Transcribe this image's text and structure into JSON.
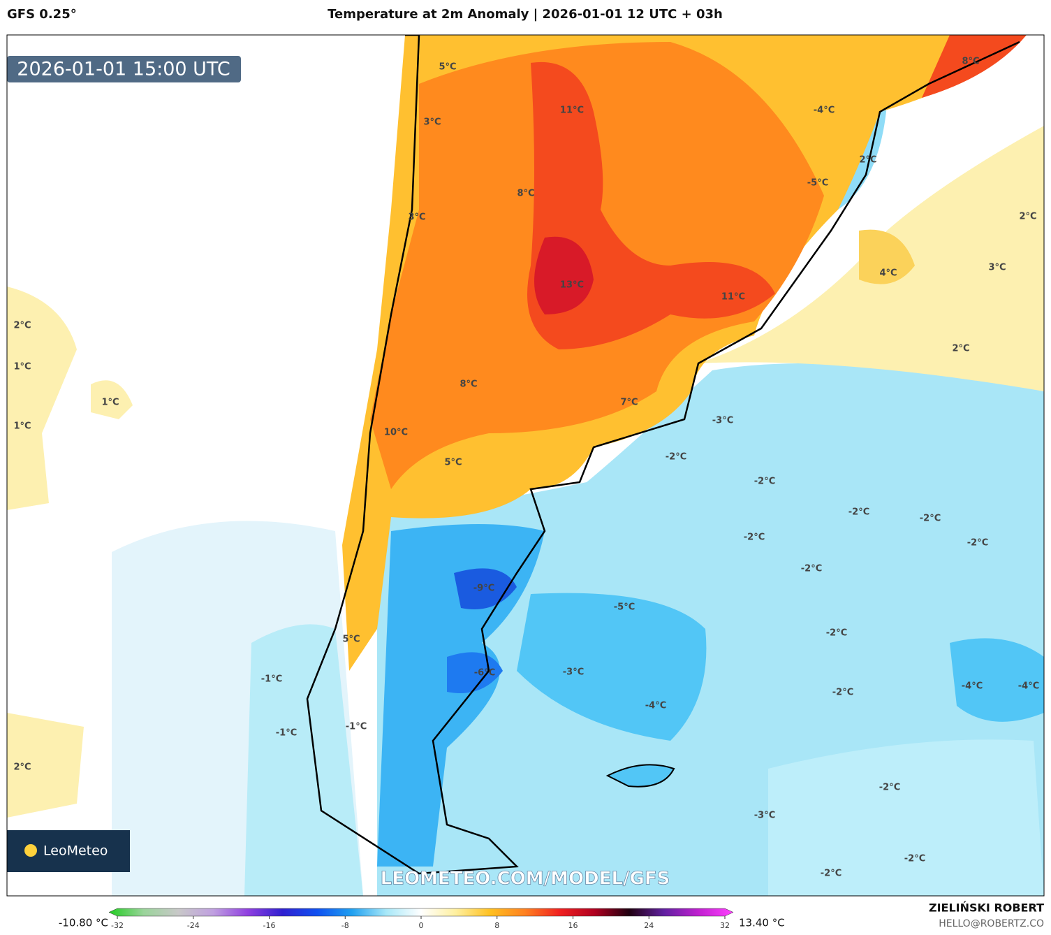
{
  "header": {
    "model": "GFS 0.25°",
    "title": "Temperature at 2m Anomaly | 2026-01-01 12 UTC + 03h"
  },
  "map": {
    "timestamp": "2026-01-01 15:00 UTC",
    "watermark": "LEOMETEO.COM/MODEL/GFS",
    "logo": "LeoMeteo",
    "labels": [
      "5°C",
      "3°C",
      "11°C",
      "8°C",
      "-4°C",
      "2°C",
      "8°C",
      "-5°C",
      "3°C",
      "2°C",
      "13°C",
      "4°C",
      "3°C",
      "11°C",
      "2°C",
      "1°C",
      "2°C",
      "1°C",
      "8°C",
      "7°C",
      "1°C",
      "-3°C",
      "10°C",
      "-2°C",
      "5°C",
      "-2°C",
      "-2°C",
      "-2°C",
      "-2°C",
      "-2°C",
      "-2°C",
      "-9°C",
      "-5°C",
      "-2°C",
      "5°C",
      "-1°C",
      "-6°C",
      "-3°C",
      "-4°C",
      "-4°C",
      "-2°C",
      "-4°C",
      "-1°C",
      "-1°C",
      "2°C",
      "-2°C",
      "-3°C",
      "-2°C",
      "-2°C"
    ]
  },
  "colorbar": {
    "min_label": "-10.80 °C",
    "max_label": "13.40 °C",
    "clim": [
      -32,
      32
    ],
    "ticks": [
      -32,
      -24,
      -16,
      -8,
      0,
      8,
      16,
      24,
      32
    ],
    "colors": [
      "#22cc22",
      "#9ad49a",
      "#c8c8c8",
      "#c0a0e0",
      "#9040e0",
      "#3020d0",
      "#1050f0",
      "#20a0f0",
      "#a8e8f8",
      "#ffffff",
      "#fff0a0",
      "#ffc020",
      "#ff8020",
      "#f02020",
      "#b00020",
      "#200010",
      "#6020a0",
      "#c020d0",
      "#ff40ff"
    ]
  },
  "footer": {
    "author": "ZIELIŃSKI ROBERT",
    "email": "HELLO@ROBERTZ.CO"
  }
}
